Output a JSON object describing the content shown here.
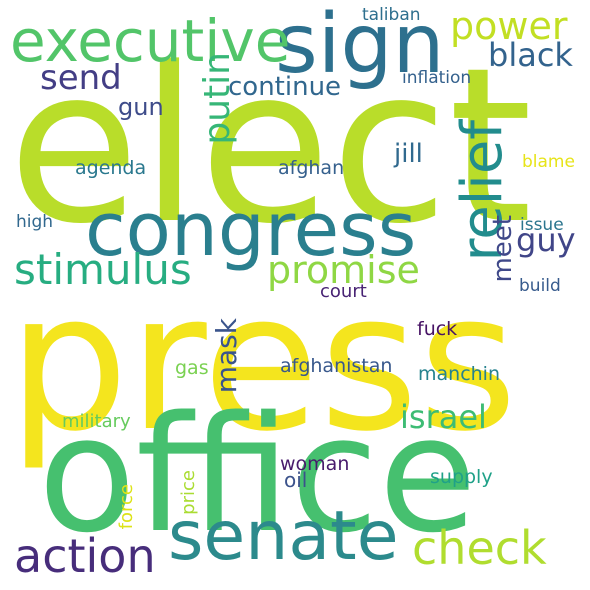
{
  "colors": {
    "background": "#ffffff",
    "yellow": "#f2e620",
    "lime": "#b7de2c",
    "green": "#44bf70",
    "teal": "#21a586",
    "cyan": "#2c8a8c",
    "blue": "#31688e",
    "indigo": "#443983",
    "purple": "#481f70"
  },
  "words": [
    {
      "text": "elect",
      "color": "#b9dd2a"
    },
    {
      "text": "press",
      "color": "#f4e51e"
    },
    {
      "text": "office",
      "color": "#46c06f"
    },
    {
      "text": "congress",
      "color": "#2a7f8e"
    },
    {
      "text": "sign",
      "color": "#2d708e"
    },
    {
      "text": "executive",
      "color": "#52c569"
    },
    {
      "text": "senate",
      "color": "#2c8a8c"
    },
    {
      "text": "check",
      "color": "#b0dd2f"
    },
    {
      "text": "stimulus",
      "color": "#27ad81"
    },
    {
      "text": "promise",
      "color": "#8fd744"
    },
    {
      "text": "relief",
      "color": "#228c8d"
    },
    {
      "text": "action",
      "color": "#472d7b"
    },
    {
      "text": "power",
      "color": "#c2df23"
    },
    {
      "text": "send",
      "color": "#433e85"
    },
    {
      "text": "black",
      "color": "#33638d"
    },
    {
      "text": "putin",
      "color": "#36b677"
    },
    {
      "text": "continue",
      "color": "#31678e"
    },
    {
      "text": "guy",
      "color": "#404588"
    },
    {
      "text": "israel",
      "color": "#3dbc74"
    },
    {
      "text": "mask",
      "color": "#3a548c"
    },
    {
      "text": "meet",
      "color": "#3f4889"
    },
    {
      "text": "jill",
      "color": "#30698e"
    },
    {
      "text": "gun",
      "color": "#3e4c8a"
    },
    {
      "text": "taliban",
      "color": "#2e6f8e"
    },
    {
      "text": "inflation",
      "color": "#34618d"
    },
    {
      "text": "agenda",
      "color": "#2a788e"
    },
    {
      "text": "afghan",
      "color": "#35608d"
    },
    {
      "text": "blame",
      "color": "#e7e419"
    },
    {
      "text": "high",
      "color": "#31688e"
    },
    {
      "text": "issue",
      "color": "#2b758e"
    },
    {
      "text": "build",
      "color": "#375b8d"
    },
    {
      "text": "court",
      "color": "#482374"
    },
    {
      "text": "fuck",
      "color": "#471365"
    },
    {
      "text": "afghanistan",
      "color": "#38588c"
    },
    {
      "text": "gas",
      "color": "#7ad151"
    },
    {
      "text": "manchin",
      "color": "#26828e"
    },
    {
      "text": "military",
      "color": "#66cb5d"
    },
    {
      "text": "woman",
      "color": "#481a6c"
    },
    {
      "text": "oil",
      "color": "#3b528b"
    },
    {
      "text": "supply",
      "color": "#1fa188"
    },
    {
      "text": "price",
      "color": "#aadc32"
    },
    {
      "text": "force",
      "color": "#dde318"
    }
  ]
}
